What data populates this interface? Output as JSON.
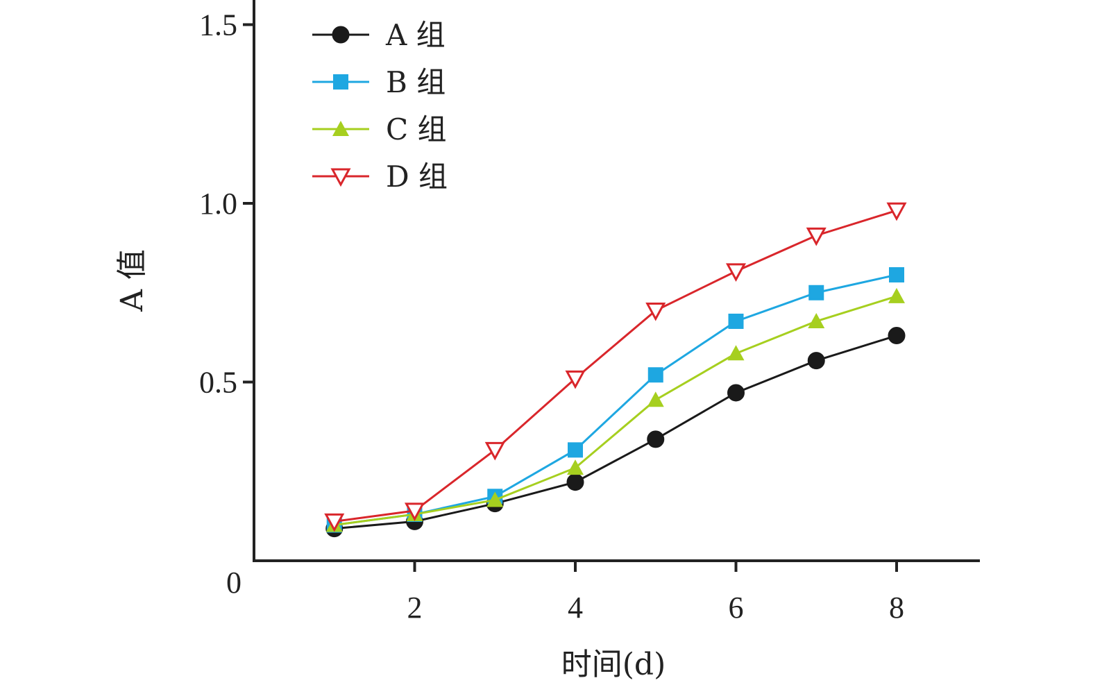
{
  "chart_data": {
    "type": "line",
    "xlabel": "时间(d)",
    "ylabel": "A 值",
    "xlim": [
      0,
      9.5
    ],
    "ylim": [
      0,
      1.5
    ],
    "x_ticks": [
      2,
      4,
      6,
      8
    ],
    "x_tick_labels": [
      "2",
      "4",
      "6",
      "8"
    ],
    "y_ticks": [
      0.5,
      1.0,
      1.5
    ],
    "y_tick_labels": [
      "0.5",
      "1.0",
      "1.5"
    ],
    "origin_label": "0",
    "grid": false,
    "legend_position": "top-left",
    "x": [
      1,
      2,
      3,
      4,
      5,
      6,
      7,
      8
    ],
    "series": [
      {
        "name": "A 组",
        "color": "#1a1a1a",
        "marker": "circle-filled",
        "values": [
          0.09,
          0.11,
          0.16,
          0.22,
          0.34,
          0.47,
          0.56,
          0.63
        ]
      },
      {
        "name": "B 组",
        "color": "#1ea7e1",
        "marker": "square-filled",
        "values": [
          0.1,
          0.13,
          0.18,
          0.31,
          0.52,
          0.67,
          0.75,
          0.8
        ]
      },
      {
        "name": "C 组",
        "color": "#a6cf1f",
        "marker": "triangle-up-filled",
        "values": [
          0.1,
          0.13,
          0.17,
          0.26,
          0.45,
          0.58,
          0.67,
          0.74
        ]
      },
      {
        "name": "D 组",
        "color": "#d9262b",
        "marker": "triangle-down-open",
        "values": [
          0.11,
          0.14,
          0.31,
          0.51,
          0.7,
          0.81,
          0.91,
          0.98
        ]
      }
    ]
  }
}
